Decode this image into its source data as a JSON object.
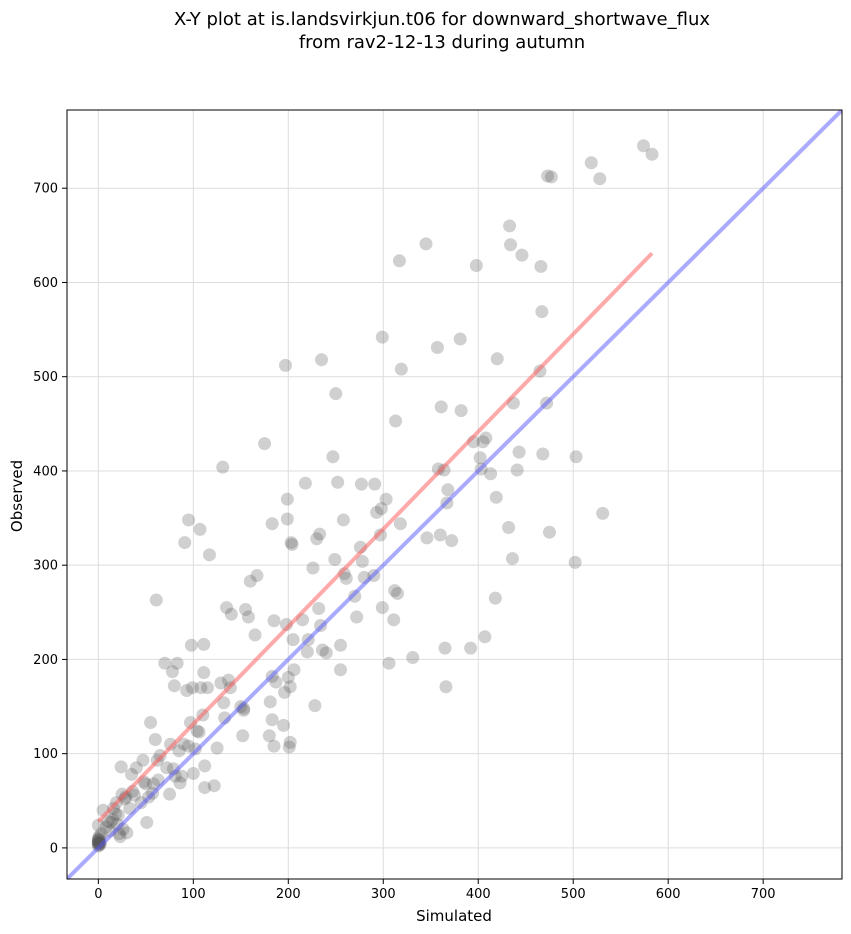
{
  "chart_data": {
    "type": "scatter",
    "title": "X-Y plot at is.landsvirkjun.t06 for downward_shortwave_flux",
    "subtitle": "from rav2-12-13 during autumn",
    "xlabel": "Simulated",
    "ylabel": "Observed",
    "xlim": [
      -33,
      783
    ],
    "ylim": [
      -33,
      783
    ],
    "xticks": [
      0,
      100,
      200,
      300,
      400,
      500,
      600,
      700
    ],
    "yticks": [
      0,
      100,
      200,
      300,
      400,
      500,
      600,
      700
    ],
    "grid": true,
    "colors": {
      "points": "#555555",
      "fit_line": "#ff5555",
      "identity_line": "#5555ff"
    },
    "fit_line": {
      "x": [
        0,
        583
      ],
      "y": [
        28,
        631
      ]
    },
    "identity_line": {
      "x": [
        -33,
        783
      ],
      "y": [
        -33,
        783
      ]
    },
    "points": [
      [
        0,
        2
      ],
      [
        0,
        4
      ],
      [
        0,
        5
      ],
      [
        0,
        6
      ],
      [
        0,
        7
      ],
      [
        0,
        8
      ],
      [
        1,
        3
      ],
      [
        1,
        9
      ],
      [
        1,
        5
      ],
      [
        2,
        6
      ],
      [
        0,
        10
      ],
      [
        1,
        12
      ],
      [
        2,
        4
      ],
      [
        0,
        24
      ],
      [
        3,
        15
      ],
      [
        5,
        40
      ],
      [
        8,
        22
      ],
      [
        10,
        28
      ],
      [
        12,
        18
      ],
      [
        13,
        27
      ],
      [
        15,
        30
      ],
      [
        16,
        42
      ],
      [
        18,
        36
      ],
      [
        19,
        48
      ],
      [
        20,
        25
      ],
      [
        21,
        35
      ],
      [
        22,
        15
      ],
      [
        23,
        12
      ],
      [
        24,
        86
      ],
      [
        25,
        57
      ],
      [
        26,
        20
      ],
      [
        28,
        52
      ],
      [
        29,
        54
      ],
      [
        30,
        16
      ],
      [
        33,
        42
      ],
      [
        35,
        78
      ],
      [
        36,
        60
      ],
      [
        38,
        56
      ],
      [
        40,
        85
      ],
      [
        45,
        48
      ],
      [
        47,
        93
      ],
      [
        48,
        70
      ],
      [
        50,
        68
      ],
      [
        51,
        27
      ],
      [
        53,
        54
      ],
      [
        55,
        133
      ],
      [
        57,
        58
      ],
      [
        58,
        68
      ],
      [
        60,
        115
      ],
      [
        61,
        263
      ],
      [
        62,
        93
      ],
      [
        63,
        72
      ],
      [
        65,
        98
      ],
      [
        70,
        196
      ],
      [
        72,
        85
      ],
      [
        75,
        57
      ],
      [
        76,
        110
      ],
      [
        78,
        187
      ],
      [
        79,
        84
      ],
      [
        80,
        172
      ],
      [
        81,
        76
      ],
      [
        83,
        196
      ],
      [
        85,
        103
      ],
      [
        86,
        69
      ],
      [
        88,
        76
      ],
      [
        90,
        110
      ],
      [
        91,
        324
      ],
      [
        93,
        167
      ],
      [
        95,
        348
      ],
      [
        95,
        108
      ],
      [
        97,
        133
      ],
      [
        98,
        215
      ],
      [
        99,
        170
      ],
      [
        100,
        79
      ],
      [
        102,
        105
      ],
      [
        104,
        124
      ],
      [
        106,
        123
      ],
      [
        107,
        338
      ],
      [
        108,
        170
      ],
      [
        110,
        141
      ],
      [
        111,
        186
      ],
      [
        111,
        216
      ],
      [
        112,
        87
      ],
      [
        112,
        64
      ],
      [
        115,
        170
      ],
      [
        117,
        311
      ],
      [
        122,
        66
      ],
      [
        125,
        106
      ],
      [
        129,
        175
      ],
      [
        131,
        404
      ],
      [
        132,
        154
      ],
      [
        133,
        138
      ],
      [
        135,
        255
      ],
      [
        137,
        178
      ],
      [
        139,
        170
      ],
      [
        140,
        248
      ],
      [
        150,
        150
      ],
      [
        152,
        119
      ],
      [
        153,
        146
      ],
      [
        153,
        148
      ],
      [
        155,
        253
      ],
      [
        158,
        245
      ],
      [
        160,
        283
      ],
      [
        165,
        226
      ],
      [
        167,
        289
      ],
      [
        175,
        429
      ],
      [
        180,
        119
      ],
      [
        181,
        155
      ],
      [
        183,
        182
      ],
      [
        183,
        344
      ],
      [
        183,
        136
      ],
      [
        185,
        108
      ],
      [
        185,
        241
      ],
      [
        187,
        176
      ],
      [
        195,
        130
      ],
      [
        196,
        165
      ],
      [
        197,
        512
      ],
      [
        198,
        237
      ],
      [
        199,
        370
      ],
      [
        199,
        349
      ],
      [
        200,
        181
      ],
      [
        201,
        107
      ],
      [
        202,
        112
      ],
      [
        202,
        171
      ],
      [
        203,
        324
      ],
      [
        204,
        322
      ],
      [
        205,
        221
      ],
      [
        206,
        189
      ],
      [
        215,
        242
      ],
      [
        218,
        387
      ],
      [
        220,
        208
      ],
      [
        221,
        221
      ],
      [
        226,
        297
      ],
      [
        228,
        151
      ],
      [
        230,
        328
      ],
      [
        232,
        254
      ],
      [
        233,
        333
      ],
      [
        234,
        236
      ],
      [
        235,
        518
      ],
      [
        236,
        210
      ],
      [
        240,
        207
      ],
      [
        247,
        415
      ],
      [
        249,
        306
      ],
      [
        250,
        482
      ],
      [
        252,
        388
      ],
      [
        255,
        215
      ],
      [
        255,
        189
      ],
      [
        258,
        348
      ],
      [
        259,
        291
      ],
      [
        261,
        286
      ],
      [
        270,
        267
      ],
      [
        272,
        245
      ],
      [
        276,
        319
      ],
      [
        277,
        386
      ],
      [
        278,
        304
      ],
      [
        280,
        287
      ],
      [
        290,
        289
      ],
      [
        291,
        386
      ],
      [
        293,
        356
      ],
      [
        297,
        332
      ],
      [
        298,
        360
      ],
      [
        299,
        255
      ],
      [
        299,
        542
      ],
      [
        303,
        370
      ],
      [
        306,
        196
      ],
      [
        311,
        242
      ],
      [
        312,
        273
      ],
      [
        313,
        453
      ],
      [
        315,
        270
      ],
      [
        317,
        623
      ],
      [
        318,
        344
      ],
      [
        319,
        508
      ],
      [
        331,
        202
      ],
      [
        345,
        641
      ],
      [
        346,
        329
      ],
      [
        357,
        531
      ],
      [
        358,
        402
      ],
      [
        360,
        332
      ],
      [
        361,
        468
      ],
      [
        364,
        401
      ],
      [
        365,
        212
      ],
      [
        366,
        171
      ],
      [
        367,
        366
      ],
      [
        368,
        380
      ],
      [
        372,
        326
      ],
      [
        381,
        540
      ],
      [
        382,
        464
      ],
      [
        392,
        212
      ],
      [
        395,
        431
      ],
      [
        398,
        618
      ],
      [
        402,
        414
      ],
      [
        403,
        402
      ],
      [
        405,
        431
      ],
      [
        407,
        224
      ],
      [
        408,
        435
      ],
      [
        413,
        397
      ],
      [
        418,
        265
      ],
      [
        419,
        372
      ],
      [
        420,
        519
      ],
      [
        432,
        340
      ],
      [
        433,
        660
      ],
      [
        434,
        640
      ],
      [
        436,
        307
      ],
      [
        437,
        472
      ],
      [
        441,
        401
      ],
      [
        443,
        420
      ],
      [
        446,
        629
      ],
      [
        465,
        506
      ],
      [
        466,
        617
      ],
      [
        467,
        569
      ],
      [
        468,
        418
      ],
      [
        472,
        472
      ],
      [
        473,
        713
      ],
      [
        475,
        335
      ],
      [
        477,
        712
      ],
      [
        502,
        303
      ],
      [
        503,
        415
      ],
      [
        519,
        727
      ],
      [
        528,
        710
      ],
      [
        531,
        355
      ],
      [
        574,
        745
      ],
      [
        583,
        736
      ]
    ]
  }
}
